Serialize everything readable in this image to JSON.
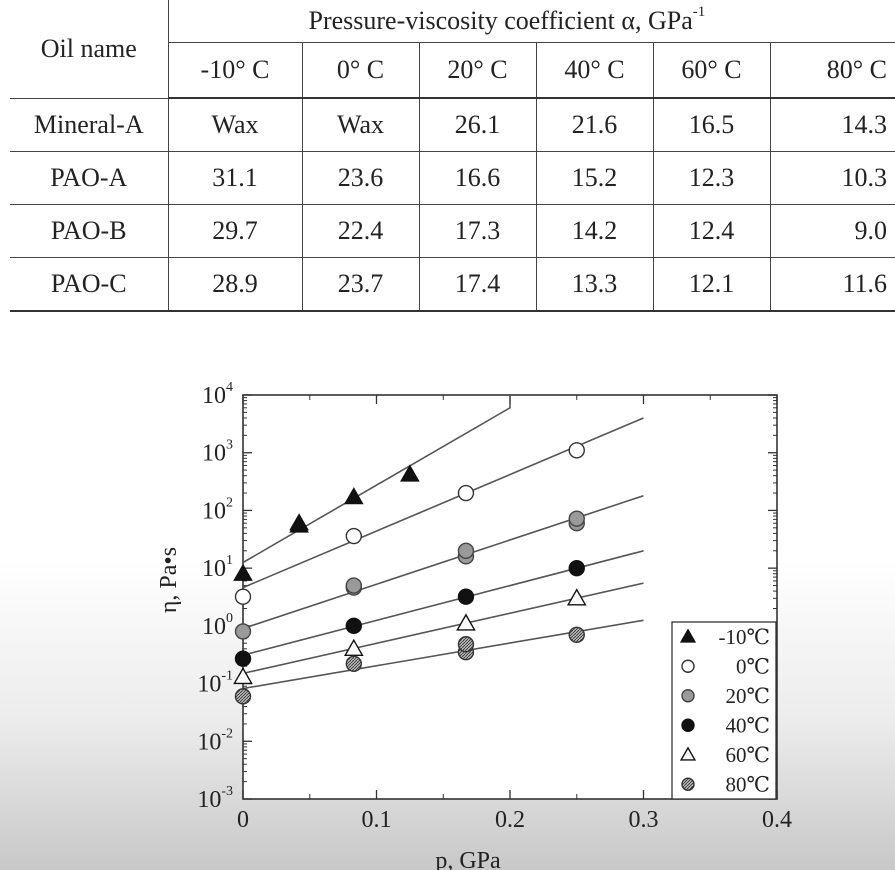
{
  "table": {
    "col_header_oil": "Oil name",
    "group_header": "Pressure-viscosity coefficient α, GPa",
    "group_header_sup": "-1",
    "temperatures": [
      "-10° C",
      "0° C",
      "20° C",
      "40° C",
      "60° C",
      "80° C"
    ],
    "rows": [
      {
        "oil": "Mineral-A",
        "values": [
          "Wax",
          "Wax",
          "26.1",
          "21.6",
          "16.5",
          "14.3"
        ]
      },
      {
        "oil": "PAO-A",
        "values": [
          "31.1",
          "23.6",
          "16.6",
          "15.2",
          "12.3",
          "10.3"
        ]
      },
      {
        "oil": "PAO-B",
        "values": [
          "29.7",
          "22.4",
          "17.3",
          "14.2",
          "12.4",
          "9.0"
        ]
      },
      {
        "oil": "PAO-C",
        "values": [
          "28.9",
          "23.7",
          "17.4",
          "13.3",
          "12.1",
          "11.6"
        ]
      }
    ]
  },
  "chart_data": {
    "type": "scatter",
    "xlabel": "p, GPa",
    "ylabel": "η,  Pa•s",
    "xlim": [
      0,
      0.4
    ],
    "ylim": [
      0.001,
      10000
    ],
    "yscale": "log",
    "x_ticks": [
      "0",
      "0.1",
      "0.2",
      "0.3",
      "0.4"
    ],
    "y_ticks": [
      {
        "base": "10",
        "exp": "-3",
        "value": 0.001
      },
      {
        "base": "10",
        "exp": "-2",
        "value": 0.01
      },
      {
        "base": "10",
        "exp": "-1",
        "value": 0.1
      },
      {
        "base": "10",
        "exp": "0",
        "value": 1
      },
      {
        "base": "10",
        "exp": "1",
        "value": 10
      },
      {
        "base": "10",
        "exp": "2",
        "value": 100
      },
      {
        "base": "10",
        "exp": "3",
        "value": 1000
      },
      {
        "base": "10",
        "exp": "4",
        "value": 10000
      }
    ],
    "legend_position": "bottom-right",
    "grid": false,
    "series": [
      {
        "name": "-10℃",
        "marker": "filled-triangle",
        "points": [
          [
            0.0,
            8.0
          ],
          [
            0.042,
            55
          ],
          [
            0.042,
            60
          ],
          [
            0.083,
            170
          ],
          [
            0.125,
            420
          ]
        ],
        "fit": [
          [
            0.0,
            12.5
          ],
          [
            0.2,
            6000
          ],
          [
            0.2,
            10000
          ]
        ]
      },
      {
        "name": "0℃",
        "marker": "open-circle",
        "points": [
          [
            0.0,
            3.2
          ],
          [
            0.083,
            36
          ],
          [
            0.167,
            200
          ],
          [
            0.25,
            1100
          ]
        ],
        "fit": [
          [
            0.0,
            4.6
          ],
          [
            0.3,
            4000
          ]
        ]
      },
      {
        "name": "20℃",
        "marker": "gray-circle",
        "points": [
          [
            0.0,
            0.8
          ],
          [
            0.083,
            4.6
          ],
          [
            0.083,
            5.0
          ],
          [
            0.167,
            16
          ],
          [
            0.167,
            20
          ],
          [
            0.25,
            60
          ],
          [
            0.25,
            72
          ]
        ],
        "fit": [
          [
            0.0,
            0.9
          ],
          [
            0.3,
            180
          ]
        ]
      },
      {
        "name": "40℃",
        "marker": "filled-circle",
        "points": [
          [
            0.0,
            0.27
          ],
          [
            0.083,
            1.0
          ],
          [
            0.167,
            3.2
          ],
          [
            0.25,
            10
          ]
        ],
        "fit": [
          [
            0.0,
            0.31
          ],
          [
            0.3,
            20
          ]
        ]
      },
      {
        "name": "60℃",
        "marker": "open-triangle",
        "points": [
          [
            0.0,
            0.13
          ],
          [
            0.083,
            0.4
          ],
          [
            0.167,
            1.1
          ],
          [
            0.25,
            3.0
          ]
        ],
        "fit": [
          [
            0.0,
            0.15
          ],
          [
            0.3,
            5.5
          ]
        ]
      },
      {
        "name": "80℃",
        "marker": "hatched-circle",
        "points": [
          [
            0.0,
            0.06
          ],
          [
            0.083,
            0.22
          ],
          [
            0.167,
            0.35
          ],
          [
            0.167,
            0.48
          ],
          [
            0.25,
            0.7
          ]
        ],
        "fit": [
          [
            0.0,
            0.082
          ],
          [
            0.3,
            1.25
          ]
        ]
      }
    ]
  }
}
